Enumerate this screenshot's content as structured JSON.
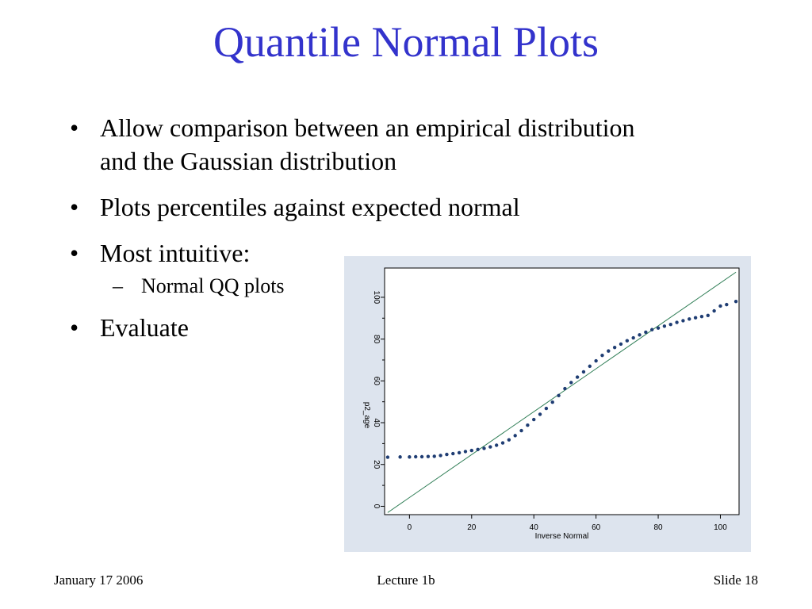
{
  "slide": {
    "title": "Quantile Normal Plots",
    "bullets": [
      "Allow comparison between an empirical distribution and the Gaussian distribution",
      "Plots percentiles against expected normal",
      "Most intuitive:"
    ],
    "sub_bullet": "Normal QQ plots",
    "last_bullet": "Evaluate",
    "bullet_glyph": "•",
    "dash_glyph": "–",
    "colors": {
      "title": "#3333cc",
      "plot_bg": "#dde4ee",
      "marker": "#1f3d73",
      "reference_line": "#2e7d55"
    }
  },
  "footer": {
    "date": "January 17 2006",
    "lecture": "Lecture 1b",
    "slide": "Slide 18"
  },
  "chart_data": {
    "type": "scatter",
    "xlabel": "Inverse Normal",
    "ylabel": "p2_age",
    "xticks": [
      "0",
      "20",
      "40",
      "60",
      "80",
      "100"
    ],
    "yticks": [
      "0",
      "20",
      "40",
      "60",
      "80",
      "100"
    ],
    "xlim": [
      -8,
      106
    ],
    "ylim": [
      -4,
      114
    ],
    "reference_line": [
      [
        -7,
        -3
      ],
      [
        105,
        112
      ]
    ],
    "series": [
      {
        "values": [
          [
            -7,
            23.5
          ],
          [
            -3,
            23.6
          ],
          [
            0,
            23.6
          ],
          [
            2,
            23.7
          ],
          [
            4,
            23.7
          ],
          [
            6,
            23.8
          ],
          [
            8,
            23.9
          ],
          [
            10,
            24.3
          ],
          [
            12,
            24.8
          ],
          [
            14,
            25.2
          ],
          [
            16,
            25.6
          ],
          [
            18,
            26.2
          ],
          [
            20,
            26.7
          ],
          [
            22,
            27.2
          ],
          [
            24,
            27.7
          ],
          [
            26,
            28.4
          ],
          [
            28,
            29.2
          ],
          [
            30,
            30.3
          ],
          [
            32,
            31.8
          ],
          [
            34,
            33.8
          ],
          [
            36,
            36.2
          ],
          [
            38,
            38.8
          ],
          [
            40,
            41.5
          ],
          [
            42,
            44.0
          ],
          [
            44,
            46.8
          ],
          [
            46,
            49.8
          ],
          [
            48,
            53.0
          ],
          [
            50,
            56.3
          ],
          [
            52,
            59.2
          ],
          [
            54,
            61.8
          ],
          [
            56,
            64.3
          ],
          [
            58,
            67.0
          ],
          [
            60,
            69.6
          ],
          [
            62,
            72.2
          ],
          [
            64,
            74.3
          ],
          [
            66,
            76.0
          ],
          [
            68,
            77.6
          ],
          [
            70,
            79.2
          ],
          [
            72,
            80.6
          ],
          [
            74,
            82.0
          ],
          [
            76,
            83.3
          ],
          [
            78,
            84.5
          ],
          [
            80,
            85.3
          ],
          [
            82,
            86.2
          ],
          [
            84,
            87.0
          ],
          [
            86,
            88.0
          ],
          [
            88,
            88.8
          ],
          [
            90,
            89.6
          ],
          [
            92,
            90.2
          ],
          [
            94,
            90.8
          ],
          [
            96,
            91.3
          ],
          [
            98,
            93.5
          ],
          [
            100,
            95.8
          ],
          [
            102,
            96.5
          ],
          [
            105,
            98.0
          ]
        ]
      }
    ]
  }
}
